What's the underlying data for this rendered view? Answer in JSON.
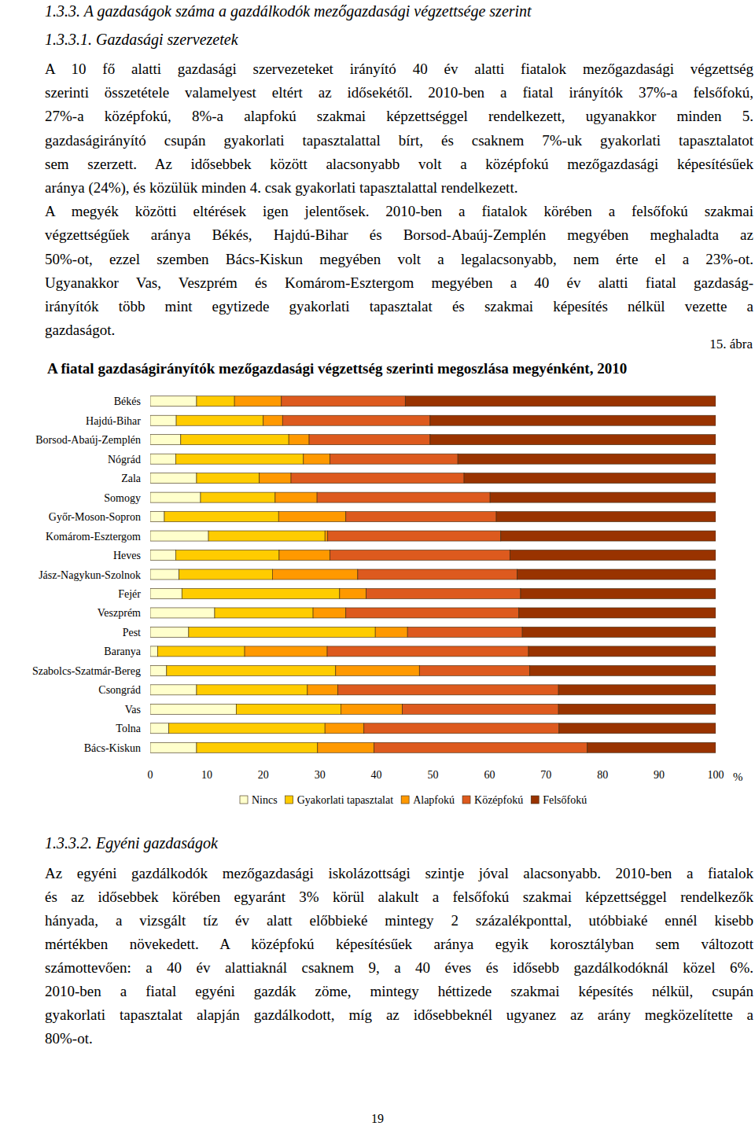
{
  "document": {
    "headings": [
      "1.3.3. A gazdaságok száma a gazdálkodók mezőgazdasági végzettsége szerint",
      "1.3.3.1. Gazdasági szervezetek"
    ],
    "paragraphs_top": [
      [
        "A 10 fő alatti gazdasági szervezeteket irányító 40 év alatti fiatalok mezőgazdasági végzettség",
        "szerinti összetétele valamelyest eltért az idősekétől. 2010-ben a fiatal irányítók 37%-a felsőfokú,",
        "27%-a középfokú, 8%-a alapfokú szakmai képzettséggel rendelkezett, ugyanakkor minden 5.",
        "gazdaságirányító csupán gyakorlati tapasztalattal bírt, és csaknem 7%-uk gyakorlati tapasztalatot",
        "sem szerzett. Az idősebbek között alacsonyabb volt a középfokú mezőgazdasági képesítésűek",
        "aránya (24%), és közülük minden 4. csak gyakorlati tapasztalattal rendelkezett."
      ],
      [
        "A megyék közötti eltérések igen jelentősek. 2010-ben a fiatalok körében a felsőfokú szakmai",
        "végzettségűek aránya Békés, Hajdú-Bihar és Borsod-Abaúj-Zemplén megyében meghaladta az",
        "50%-ot, ezzel szemben Bács-Kiskun megyében volt a legalacsonyabb, nem érte el a 23%-ot.",
        "Ugyanakkor Vas, Veszprém és Komárom-Esztergom megyében a 40 év alatti fiatal gazdaság-",
        "irányítók több mint egytizede gyakorlati tapasztalat és szakmai képesítés nélkül vezette a",
        "gazdaságot."
      ]
    ],
    "figure_number": "15. ábra",
    "subheading": "1.3.3.2. Egyéni gazdaságok",
    "paragraphs_bottom": [
      [
        "Az egyéni gazdálkodók mezőgazdasági iskolázottsági szintje jóval alacsonyabb. 2010-ben a fiatalok",
        "és az idősebbek körében egyaránt 3% körül alakult a felsőfokú szakmai képzettséggel rendelkezők",
        "hányada, a vizsgált tíz év alatt előbbieké mintegy 2 százalékponttal, utóbbiaké ennél kisebb",
        "mértékben növekedett. A középfokú képesítésűek aránya egyik korosztályban sem változott",
        "számottevően: a 40 év alattiaknál csaknem 9, a 40 éves és idősebb gazdálkodóknál közel 6%.",
        "2010-ben a fiatal egyéni gazdák zöme, mintegy héttizede szakmai képesítés nélkül, csupán",
        "gyakorlati tapasztalat alapján gazdálkodott, míg az idősebbeknél ugyanez az arány megközelítette a",
        "80%-ot."
      ]
    ],
    "page_number": "19"
  },
  "chart_data": {
    "type": "bar",
    "orientation": "horizontal",
    "stacked": true,
    "title": "A fiatal gazdaságirányítók mezőgazdasági végzettség szerinti megoszlása megyénként, 2010",
    "xlabel": "%",
    "categories": [
      "Békés",
      "Hajdú-Bihar",
      "Borsod-Abaúj-Zemplén",
      "Nógrád",
      "Zala",
      "Somogy",
      "Győr-Moson-Sopron",
      "Komárom-Esztergom",
      "Heves",
      "Jász-Nagykun-Szolnok",
      "Fejér",
      "Veszprém",
      "Pest",
      "Baranya",
      "Szabolcs-Szatmár-Bereg",
      "Csongrád",
      "Vas",
      "Tolna",
      "Bács-Kiskun"
    ],
    "series": [
      {
        "name": "Nincs",
        "color": "#FFFFCC",
        "values": [
          8.2,
          4.6,
          5.4,
          4.5,
          8.2,
          8.9,
          2.5,
          10.3,
          4.5,
          5.1,
          5.6,
          11.4,
          6.8,
          1.3,
          2.9,
          8.2,
          15.2,
          3.3,
          8.2
        ]
      },
      {
        "name": "Gyakorlati tapasztalat",
        "color": "#FFCC00",
        "values": [
          6.7,
          15.4,
          19.1,
          22.6,
          11.1,
          13.2,
          20.2,
          20.6,
          18.3,
          16.5,
          27.9,
          17.4,
          33.0,
          15.4,
          29.9,
          19.6,
          18.5,
          27.6,
          21.4
        ]
      },
      {
        "name": "Alapfokú",
        "color": "#FF9900",
        "values": [
          8.3,
          3.4,
          3.6,
          4.7,
          5.6,
          7.4,
          11.9,
          0.5,
          9.0,
          15.1,
          4.7,
          5.8,
          5.7,
          14.6,
          14.8,
          5.4,
          10.9,
          6.9,
          10.0
        ]
      },
      {
        "name": "Középfokú",
        "color": "#DD5A1E",
        "values": [
          21.9,
          26.1,
          21.4,
          22.6,
          30.6,
          30.6,
          26.6,
          30.6,
          31.8,
          28.2,
          27.3,
          30.6,
          20.3,
          35.6,
          19.5,
          39.0,
          27.6,
          34.5,
          37.7
        ]
      },
      {
        "name": "Felsőfokú",
        "color": "#993300",
        "values": [
          54.9,
          50.5,
          50.5,
          45.6,
          44.5,
          39.9,
          38.8,
          38.0,
          36.4,
          35.1,
          34.5,
          34.8,
          34.2,
          33.1,
          32.9,
          27.8,
          27.8,
          27.7,
          22.7
        ]
      }
    ],
    "xlim": [
      0,
      100
    ],
    "xticks": [
      0,
      10,
      20,
      30,
      40,
      50,
      60,
      70,
      80,
      90,
      100
    ],
    "legend": "bottom",
    "grid": false
  }
}
